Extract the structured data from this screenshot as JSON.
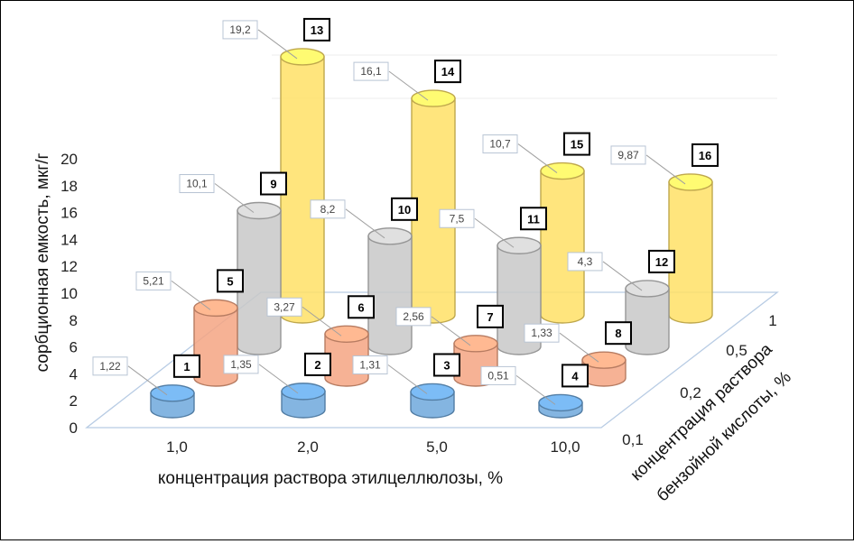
{
  "chart_data": {
    "type": "bar",
    "style": "3d-cylinder",
    "ylabel": "сорбционная емкость, мкг/г",
    "xlabel": "концентрация раствора этилцеллюлозы, %",
    "zlabel": [
      "концентрация раствора",
      "бензойной кислоты, %"
    ],
    "categories": [
      "1,0",
      "2,0",
      "5,0",
      "10,0"
    ],
    "depth_categories": [
      "0,1",
      "0,2",
      "0,5",
      "1"
    ],
    "y_ticks": [
      "0",
      "2",
      "4",
      "6",
      "8",
      "10",
      "12",
      "14",
      "16",
      "18",
      "20"
    ],
    "ylim": [
      0,
      20
    ],
    "series": [
      {
        "name": "0,1",
        "color": "#6fa8dc",
        "values": [
          1.22,
          1.35,
          1.31,
          0.51
        ],
        "labels": [
          "1,22",
          "1,35",
          "1,31",
          "0,51"
        ],
        "ids": [
          "1",
          "2",
          "3",
          "4"
        ]
      },
      {
        "name": "0,2",
        "color": "#f4a582",
        "values": [
          5.21,
          3.27,
          2.56,
          1.33
        ],
        "labels": [
          "5,21",
          "3,27",
          "2,56",
          "1,33"
        ],
        "ids": [
          "5",
          "6",
          "7",
          "8"
        ]
      },
      {
        "name": "0,5",
        "color": "#c8c8c8",
        "values": [
          10.1,
          8.2,
          7.5,
          4.3
        ],
        "labels": [
          "10,1",
          "8,2",
          "7,5",
          "4,3"
        ],
        "ids": [
          "9",
          "10",
          "11",
          "12"
        ]
      },
      {
        "name": "1",
        "color": "#ffe066",
        "values": [
          19.2,
          16.1,
          10.7,
          9.87
        ],
        "labels": [
          "19,2",
          "16,1",
          "10,7",
          "9,87"
        ],
        "ids": [
          "13",
          "14",
          "15",
          "16"
        ]
      }
    ],
    "grid": false
  }
}
